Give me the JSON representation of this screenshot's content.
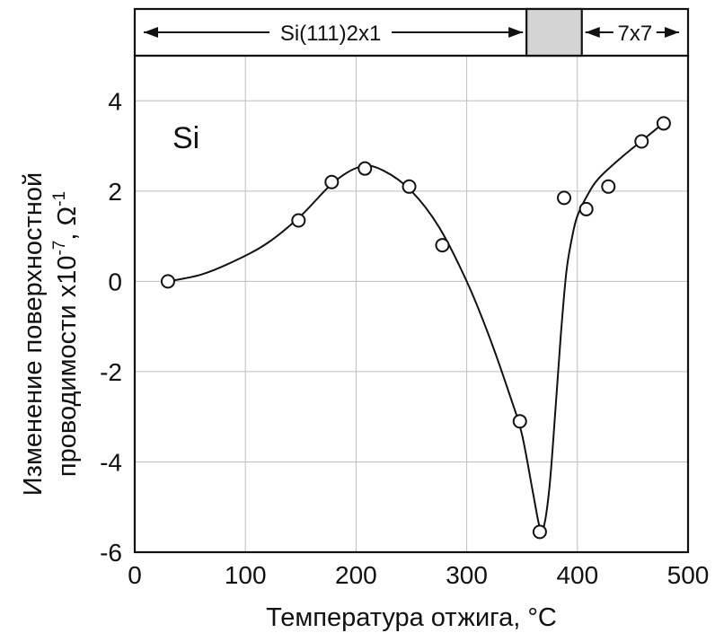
{
  "chart_data": {
    "type": "scatter",
    "title": "",
    "xlabel": "Температура отжига, °С",
    "ylabel_line1": "Изменение поверхностной",
    "ylabel_line2_prefix": "проводимости x10",
    "ylabel_exp1": "-7",
    "ylabel_sep": ", Ω",
    "ylabel_exp2": "-1",
    "annotation": "Si",
    "xlim": [
      0,
      500
    ],
    "ylim": [
      -6,
      5
    ],
    "x_ticks": [
      0,
      100,
      200,
      300,
      400,
      500
    ],
    "x_tick_labels": [
      "0",
      "100",
      "200",
      "300",
      "400",
      "500"
    ],
    "y_ticks": [
      -6,
      -4,
      -2,
      0,
      2,
      4
    ],
    "y_tick_labels": [
      "-6",
      "-4",
      "-2",
      "0",
      "2",
      "4"
    ],
    "grid": true,
    "series": [
      {
        "marker": "open-circle",
        "x": [
          30,
          148,
          178,
          208,
          248,
          278,
          348,
          366,
          388,
          408,
          428,
          458,
          478
        ],
        "y": [
          0.0,
          1.35,
          2.2,
          2.5,
          2.1,
          0.8,
          -3.1,
          -5.55,
          1.85,
          1.6,
          2.1,
          3.1,
          3.5
        ]
      }
    ],
    "fit_curve": {
      "x": [
        30,
        60,
        90,
        120,
        150,
        180,
        205,
        225,
        250,
        275,
        300,
        320,
        340,
        350,
        360,
        366,
        370,
        375,
        380,
        385,
        390,
        395,
        400,
        410,
        420,
        440,
        460,
        480
      ],
      "y": [
        0.0,
        0.15,
        0.45,
        0.85,
        1.45,
        2.2,
        2.55,
        2.45,
        2.0,
        1.2,
        0.0,
        -1.2,
        -2.6,
        -3.4,
        -4.7,
        -5.45,
        -5.4,
        -4.5,
        -2.9,
        -1.2,
        0.2,
        0.95,
        1.45,
        1.95,
        2.3,
        2.75,
        3.15,
        3.55
      ]
    },
    "phases": {
      "left_label": "Si(111)2x1",
      "right_label": "7x7",
      "transition_range": [
        354,
        404
      ],
      "transition_color": "#d4d4d4"
    }
  }
}
